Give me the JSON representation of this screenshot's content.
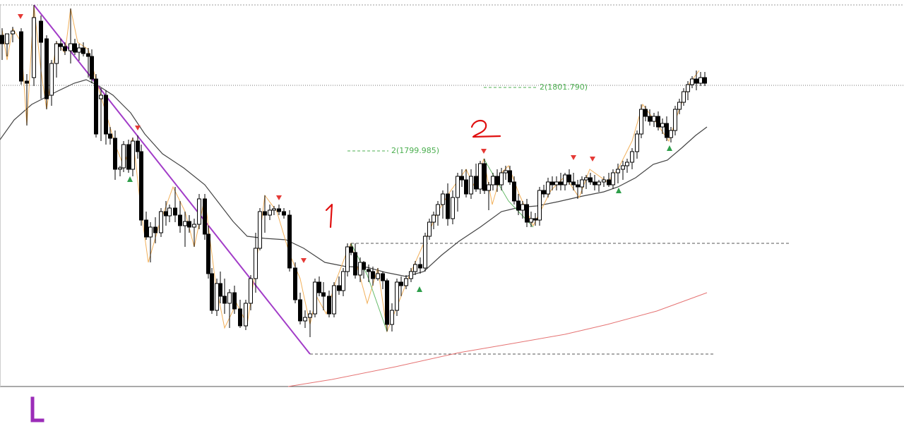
{
  "chart_data": {
    "type": "candlestick",
    "levels": [
      {
        "label": "2(1801.790)",
        "value": 1801.79,
        "color": "#4caf50"
      },
      {
        "label": "2(1799.985)",
        "value": 1799.985,
        "color": "#4caf50"
      }
    ],
    "annotations": [
      "1",
      "2"
    ],
    "colors": {
      "bull_fill": "#ffffff",
      "bear_fill": "#000000",
      "zigzag": "#f2b05a",
      "trendline": "#a23cc8",
      "ma_fast": "#444444",
      "ma_slow": "#e57373",
      "up_marker": "#2e9e4a",
      "down_marker": "#e53935",
      "annotation": "#e01010"
    }
  }
}
